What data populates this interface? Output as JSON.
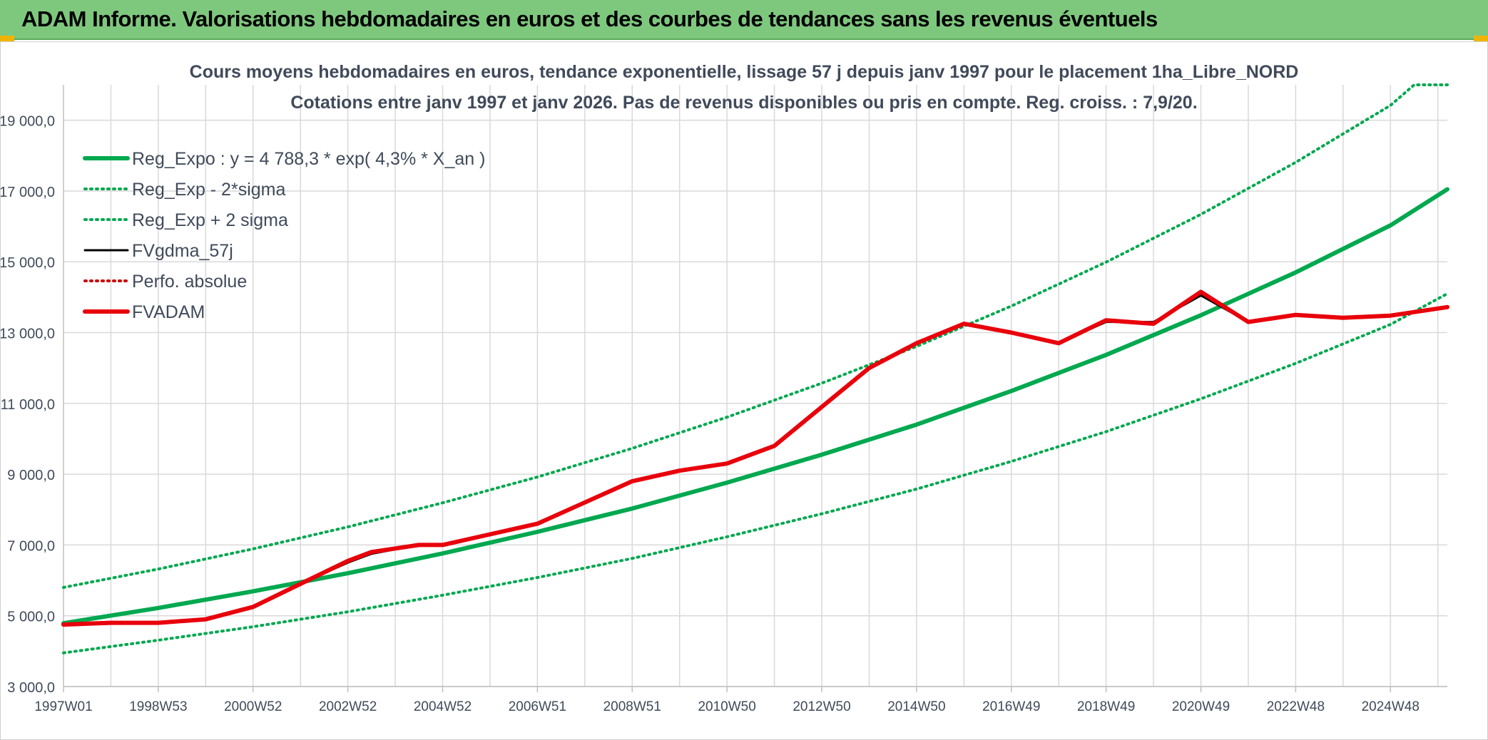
{
  "banner": {
    "title": "ADAM Informe. Valorisations hebdomadaires en euros et des courbes de tendances sans les revenus éventuels"
  },
  "colors": {
    "banner_bg": "#7ec87e",
    "reg_expo": "#00a84f",
    "fvadam": "#e8000b",
    "fvgdma": "#000000",
    "perfo": "#cc0000",
    "grid": "#d9d9d9"
  },
  "chart_data": {
    "type": "line",
    "title": "Cours moyens hebdomadaires en euros, tendance exponentielle, lissage 57 j depuis janv 1997 pour le placement 1ha_Libre_NORD",
    "subtitle": "Cotations entre janv 1997 et janv 2026. Pas de revenus disponibles ou pris en compte. Reg. croiss. : 7,9/20.",
    "xlabel": "",
    "ylabel": "",
    "xlim": [
      1997.0,
      2026.2
    ],
    "ylim": [
      3000,
      20000
    ],
    "yticks": [
      3000,
      5000,
      7000,
      9000,
      11000,
      13000,
      15000,
      17000,
      19000
    ],
    "ytick_labels": [
      "3 000,0",
      "5 000,0",
      "7 000,0",
      "9 000,0",
      "11 000,0",
      "13 000,0",
      "15 000,0",
      "17 000,0",
      "19 000,0"
    ],
    "xtick_labels": [
      {
        "label": "1997W01",
        "t": 1997.0
      },
      {
        "label": "1998W53",
        "t": 1999.0
      },
      {
        "label": "2000W52",
        "t": 2001.0
      },
      {
        "label": "2002W52",
        "t": 2003.0
      },
      {
        "label": "2004W52",
        "t": 2005.0
      },
      {
        "label": "2006W51",
        "t": 2007.0
      },
      {
        "label": "2008W51",
        "t": 2009.0
      },
      {
        "label": "2010W50",
        "t": 2011.0
      },
      {
        "label": "2012W50",
        "t": 2013.0
      },
      {
        "label": "2014W50",
        "t": 2015.0
      },
      {
        "label": "2016W49",
        "t": 2017.0
      },
      {
        "label": "2018W49",
        "t": 2019.0
      },
      {
        "label": "2020W49",
        "t": 2021.0
      },
      {
        "label": "2022W48",
        "t": 2023.0
      },
      {
        "label": "2024W48",
        "t": 2025.0
      }
    ],
    "grid": true,
    "legend_position": "top-left",
    "series": [
      {
        "name": "Reg_Expo : y = 4 788,3 * exp( 4,3% *  X_an )",
        "style": "solid-thick",
        "color": "#00a84f",
        "x": [
          1997.0,
          1999.0,
          2001.0,
          2003.0,
          2005.0,
          2007.0,
          2009.0,
          2011.0,
          2013.0,
          2015.0,
          2017.0,
          2019.0,
          2021.0,
          2023.0,
          2025.0,
          2026.2
        ],
        "y": [
          4788,
          5220,
          5690,
          6200,
          6760,
          7370,
          8030,
          8760,
          9550,
          10400,
          11350,
          12370,
          13490,
          14700,
          16030,
          17050
        ]
      },
      {
        "name": "Reg_Exp - 2*sigma",
        "style": "dotted",
        "color": "#00a84f",
        "x": [
          1997.0,
          1999.0,
          2001.0,
          2003.0,
          2005.0,
          2007.0,
          2009.0,
          2011.0,
          2013.0,
          2015.0,
          2017.0,
          2019.0,
          2021.0,
          2023.0,
          2025.0,
          2026.2
        ],
        "y": [
          3950,
          4310,
          4690,
          5110,
          5580,
          6080,
          6620,
          7230,
          7880,
          8580,
          9360,
          10200,
          11130,
          12130,
          13230,
          14100
        ]
      },
      {
        "name": "Reg_Exp + 2 sigma",
        "style": "dotted",
        "color": "#00a84f",
        "x": [
          1997.0,
          1999.0,
          2001.0,
          2003.0,
          2005.0,
          2007.0,
          2009.0,
          2011.0,
          2013.0,
          2015.0,
          2017.0,
          2019.0,
          2021.0,
          2023.0,
          2025.0,
          2025.5,
          2026.2
        ],
        "y": [
          5800,
          6320,
          6890,
          7510,
          8190,
          8920,
          9730,
          10610,
          11570,
          12610,
          13750,
          14990,
          16340,
          17810,
          19420,
          20000,
          20000
        ]
      },
      {
        "name": "FVgdma_57j",
        "style": "solid",
        "color": "#000000",
        "x": [
          1997.0,
          1998.0,
          1999.0,
          2000.0,
          2001.0,
          2002.0,
          2003.0,
          2003.5,
          2004.5,
          2005.0,
          2006.0,
          2007.0,
          2008.0,
          2009.0,
          2010.0,
          2011.0,
          2012.0,
          2013.0,
          2014.0,
          2015.0,
          2016.0,
          2017.0,
          2018.0,
          2019.0,
          2020.0,
          2021.0,
          2022.0,
          2023.0,
          2024.0,
          2025.0,
          2026.2
        ],
        "y": [
          4750,
          4800,
          4800,
          4900,
          5250,
          5900,
          6500,
          6750,
          7000,
          7020,
          7300,
          7600,
          8200,
          8800,
          9100,
          9300,
          9800,
          10900,
          12000,
          12700,
          13250,
          13000,
          12700,
          13300,
          13300,
          14050,
          13300,
          13500,
          13420,
          13480,
          13720
        ]
      },
      {
        "name": "Perfo. absolue",
        "style": "dotted",
        "color": "#cc0000",
        "x": [],
        "y": []
      },
      {
        "name": "FVADAM",
        "style": "solid-thick",
        "color": "#e8000b",
        "x": [
          1997.0,
          1998.0,
          1999.0,
          2000.0,
          2001.0,
          2002.0,
          2003.0,
          2003.5,
          2004.5,
          2005.0,
          2006.0,
          2007.0,
          2008.0,
          2009.0,
          2010.0,
          2011.0,
          2012.0,
          2013.0,
          2014.0,
          2015.0,
          2016.0,
          2017.0,
          2018.0,
          2019.0,
          2020.0,
          2021.0,
          2022.0,
          2023.0,
          2024.0,
          2025.0,
          2026.2
        ],
        "y": [
          4750,
          4800,
          4800,
          4900,
          5250,
          5900,
          6550,
          6800,
          7000,
          7000,
          7300,
          7600,
          8200,
          8800,
          9100,
          9300,
          9800,
          10900,
          12000,
          12700,
          13250,
          13000,
          12700,
          13350,
          13250,
          14150,
          13300,
          13500,
          13420,
          13480,
          13720
        ]
      }
    ]
  }
}
